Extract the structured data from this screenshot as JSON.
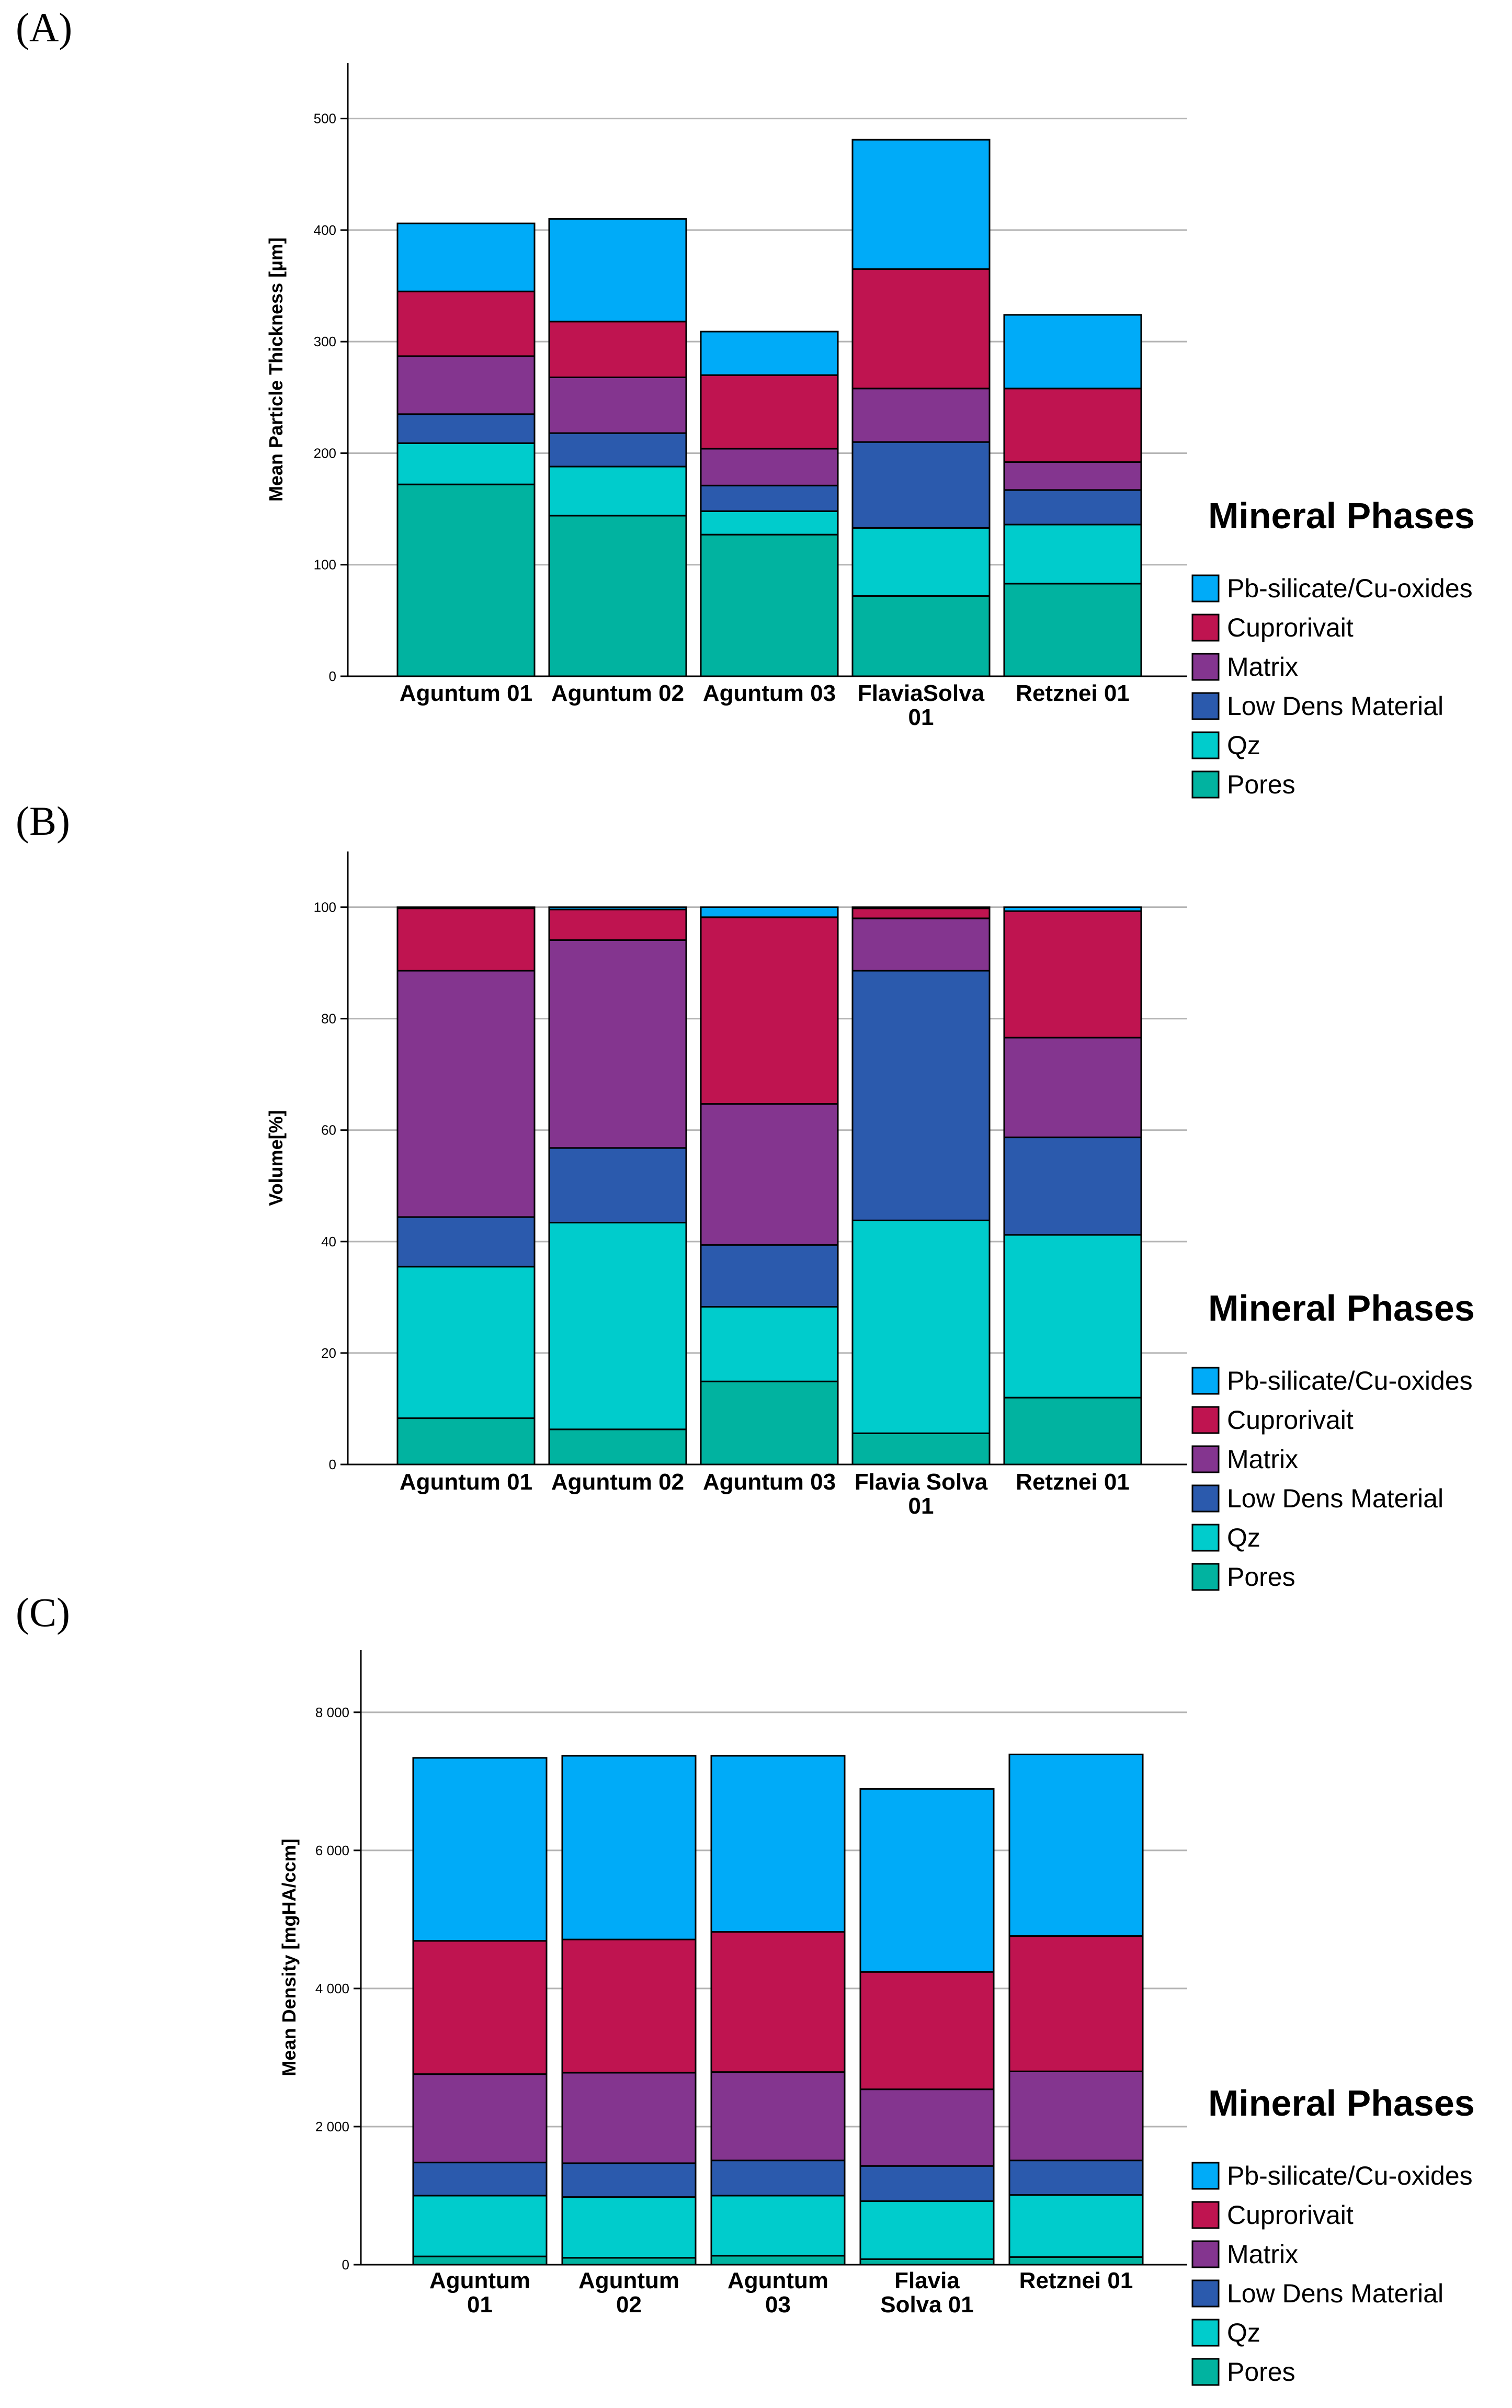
{
  "chart_data": [
    {
      "panel": "(A)",
      "type": "bar",
      "stacked": true,
      "ylabel": "Mean Particle Thickness [µm]",
      "xlabel": "",
      "ylim": [
        0,
        550
      ],
      "yticks": [
        "0",
        "100",
        "200",
        "300",
        "400",
        "500"
      ],
      "grid": true,
      "categories": [
        "Aguntum 01",
        "Aguntum 02",
        "Aguntum 03",
        "FlaviaSolva 01",
        "Retznei 01"
      ],
      "series": [
        {
          "name": "Pores",
          "values": [
            172,
            144,
            127,
            72,
            83
          ]
        },
        {
          "name": "Qz",
          "values": [
            37,
            44,
            21,
            61,
            53
          ]
        },
        {
          "name": "Low Dens Material",
          "values": [
            26,
            30,
            23,
            77,
            31
          ]
        },
        {
          "name": "Matrix",
          "values": [
            52,
            50,
            33,
            48,
            25
          ]
        },
        {
          "name": "Cuprorivait",
          "values": [
            58,
            50,
            66,
            107,
            66
          ]
        },
        {
          "name": "Pb-silicate/Cu-oxides",
          "values": [
            61,
            92,
            39,
            116,
            66
          ]
        }
      ],
      "legend": {
        "title": "Mineral Phases",
        "position": "right"
      }
    },
    {
      "panel": "(B)",
      "type": "bar",
      "stacked": true,
      "ylabel": "Volume[%]",
      "xlabel": "",
      "ylim": [
        0,
        110
      ],
      "yticks": [
        "0",
        "20",
        "40",
        "60",
        "80",
        "100"
      ],
      "grid": true,
      "categories": [
        "Aguntum 01",
        "Aguntum 02",
        "Aguntum 03",
        "Flavia Solva 01",
        "Retznei 01"
      ],
      "series": [
        {
          "name": "Pores",
          "values": [
            8.3,
            6.3,
            14.9,
            5.6,
            12.0
          ]
        },
        {
          "name": "Qz",
          "values": [
            27.2,
            37.1,
            13.4,
            38.2,
            29.2
          ]
        },
        {
          "name": "Low Dens Material",
          "values": [
            8.9,
            13.4,
            11.1,
            44.8,
            17.5
          ]
        },
        {
          "name": "Matrix",
          "values": [
            44.2,
            37.3,
            25.3,
            9.4,
            17.9
          ]
        },
        {
          "name": "Cuprorivait",
          "values": [
            11.2,
            5.5,
            33.5,
            1.8,
            22.7
          ]
        },
        {
          "name": "Pb-silicate/Cu-oxides",
          "values": [
            0.2,
            0.4,
            1.8,
            0.2,
            0.7
          ]
        }
      ],
      "legend": {
        "title": "Mineral Phases",
        "position": "right"
      }
    },
    {
      "panel": "(C)",
      "type": "bar",
      "stacked": true,
      "ylabel": "Mean Density [mgHA/ccm]",
      "xlabel": "",
      "ylim": [
        0,
        8900
      ],
      "yticks": [
        "0",
        "2 000",
        "4 000",
        "6 000",
        "8 000"
      ],
      "grid": true,
      "categories": [
        "Aguntum 01",
        "Aguntum 02",
        "Aguntum 03",
        "Flavia Solva 01",
        "Retznei 01"
      ],
      "series": [
        {
          "name": "Pores",
          "values": [
            120,
            100,
            130,
            80,
            110
          ]
        },
        {
          "name": "Qz",
          "values": [
            880,
            880,
            870,
            840,
            900
          ]
        },
        {
          "name": "Low Dens Material",
          "values": [
            480,
            490,
            510,
            510,
            500
          ]
        },
        {
          "name": "Matrix",
          "values": [
            1280,
            1310,
            1280,
            1110,
            1290
          ]
        },
        {
          "name": "Cuprorivait",
          "values": [
            1930,
            1930,
            2030,
            1700,
            1960
          ]
        },
        {
          "name": "Pb-silicate/Cu-oxides",
          "values": [
            2650,
            2660,
            2550,
            2650,
            2630
          ]
        }
      ],
      "legend": {
        "title": "Mineral Phases",
        "position": "right"
      }
    }
  ],
  "colors": {
    "Pores": "#01b3a0",
    "Qz": "#00cccc",
    "Low Dens Material": "#2b5aad",
    "Matrix": "#84358f",
    "Cuprorivait": "#bf1450",
    "Pb-silicate/Cu-oxides": "#00abf8",
    "grid": "#b4b4b4",
    "axis": "#000000"
  }
}
